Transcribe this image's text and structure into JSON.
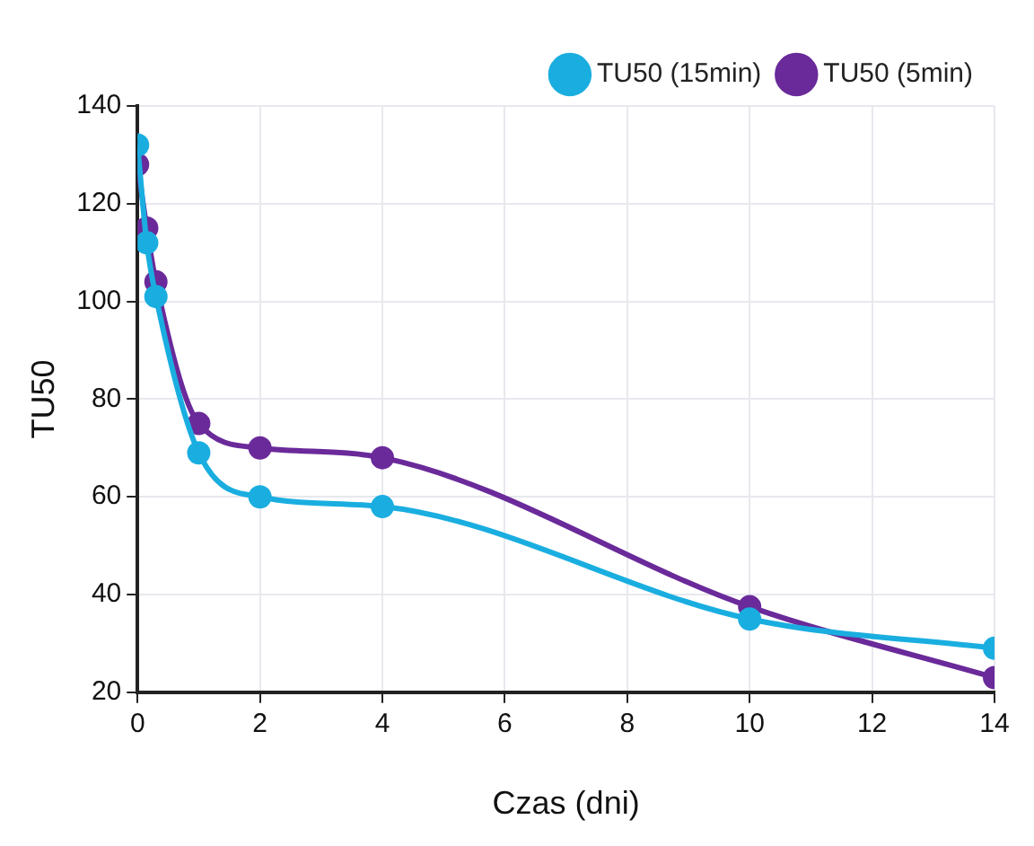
{
  "chart_data": {
    "type": "line",
    "xlabel": "Czas (dni)",
    "ylabel": "TU50",
    "xlim": [
      0,
      14
    ],
    "xticks": [
      0,
      2,
      4,
      6,
      8,
      10,
      12,
      14
    ],
    "ylim": [
      20,
      140
    ],
    "yticks": [
      20,
      40,
      60,
      80,
      100,
      120,
      140
    ],
    "grid": true,
    "legend": "top right",
    "marker": "circle",
    "line_style": "solid",
    "series": [
      {
        "name": "TU50 (15min)",
        "color": "#1aaee0",
        "x": [
          0,
          0.15,
          0.3,
          1,
          2,
          4,
          10,
          14
        ],
        "values": [
          132,
          112,
          101,
          69,
          60,
          58,
          35,
          29
        ]
      },
      {
        "name": "TU50 (5min)",
        "color": "#6a2a9a",
        "x": [
          0,
          0.15,
          0.3,
          1,
          2,
          4,
          10,
          14
        ],
        "values": [
          128,
          115,
          104,
          75,
          70,
          68,
          37.5,
          23
        ]
      }
    ]
  }
}
